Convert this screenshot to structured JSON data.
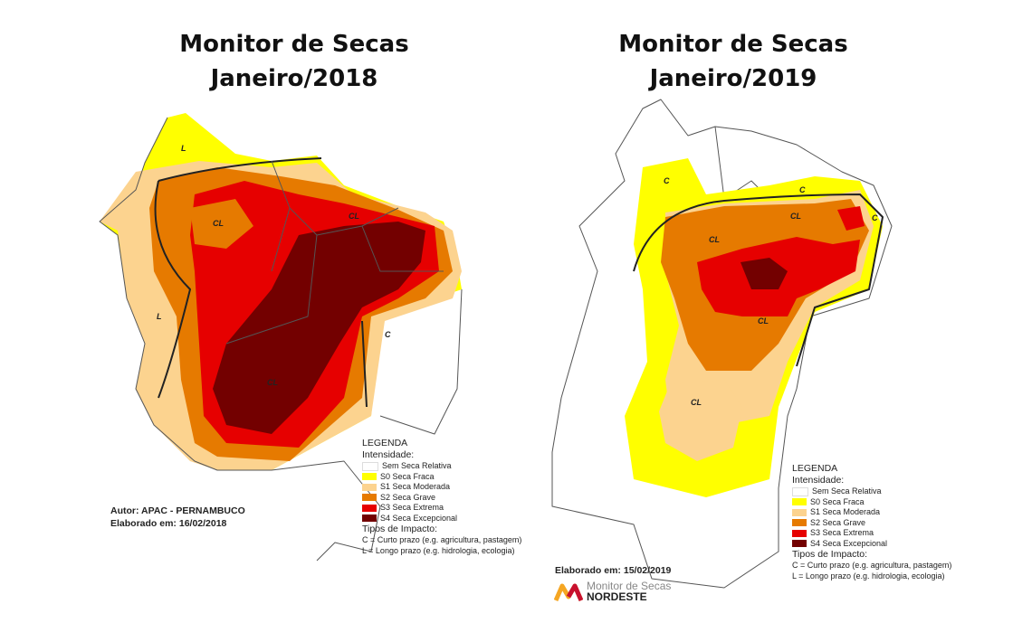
{
  "maps": [
    {
      "title_line1": "Monitor de Secas",
      "title_line2": "Janeiro/2018",
      "author": "Autor: APAC - PERNAMBUCO",
      "elaborated": "Elaborado em: 16/02/2018",
      "region_labels": [
        "L",
        "CL",
        "CL",
        "L",
        "C",
        "CL"
      ]
    },
    {
      "title_line1": "Monitor de Secas",
      "title_line2": "Janeiro/2019",
      "elaborated": "Elaborado em: 15/02/2019",
      "region_labels": [
        "C",
        "C",
        "CL",
        "CL",
        "C",
        "CL",
        "CL"
      ]
    }
  ],
  "legend": {
    "title": "LEGENDA",
    "intensity_title": "Intensidade:",
    "items": [
      {
        "label": "Sem Seca Relativa",
        "color": "#ffffff"
      },
      {
        "label": "S0 Seca Fraca",
        "color": "#ffff00"
      },
      {
        "label": "S1 Seca Moderada",
        "color": "#fcd38f"
      },
      {
        "label": "S2 Seca Grave",
        "color": "#e67a00"
      },
      {
        "label": "S3 Seca Extrema",
        "color": "#e60000"
      },
      {
        "label": "S4 Seca Excepcional",
        "color": "#730000"
      }
    ],
    "impact_title": "Tipos de Impacto:",
    "impact_items": [
      "C = Curto prazo (e.g. agricultura, pastagem)",
      "L = Longo prazo (e.g. hidrologia, ecologia)"
    ]
  },
  "logo": {
    "line1": "Monitor de Secas",
    "line2": "NORDESTE"
  }
}
